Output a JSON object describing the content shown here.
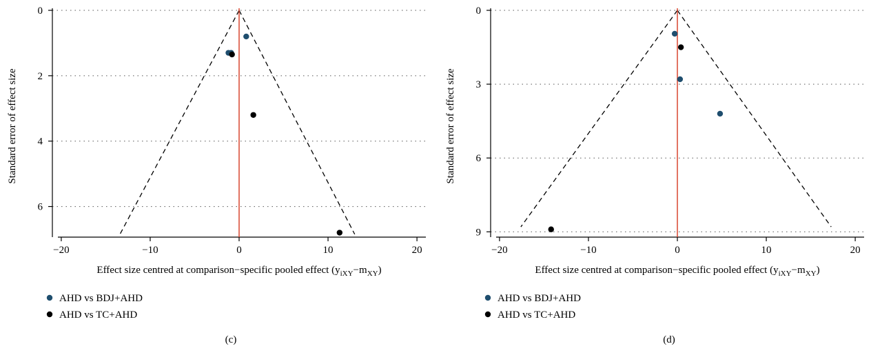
{
  "chart_data": [
    {
      "type": "scatter",
      "panel_label": "(c)",
      "xlabel": "Effect size centred at comparison−specific pooled effect (y",
      "xlabel_sub1": "iXY",
      "xlabel_mid": "−m",
      "xlabel_sub2": "XY",
      "xlabel_end": ")",
      "ylabel": "Standard error of effect size",
      "xlim": [
        -21,
        21
      ],
      "ylim": [
        0,
        7
      ],
      "y_reversed": true,
      "x_ticks": [
        "−20",
        "−10",
        "0",
        "10",
        "20"
      ],
      "x_tick_values": [
        -20,
        -10,
        0,
        10,
        20
      ],
      "y_ticks": [
        "0",
        "2",
        "4",
        "6"
      ],
      "y_tick_values": [
        0,
        2,
        4,
        6
      ],
      "grid": "horizontal dotted",
      "reference_line_x": 0,
      "funnel": {
        "apex_y": 0,
        "base_y": 6.85,
        "base_left_x": -13.4,
        "base_right_x": 13.0
      },
      "series": [
        {
          "name": "AHD vs BDJ+AHD",
          "color": "#1f4e6e",
          "points": [
            {
              "x": 0.8,
              "y": 0.8
            },
            {
              "x": -1.2,
              "y": 1.3
            },
            {
              "x": -0.9,
              "y": 1.3
            }
          ]
        },
        {
          "name": "AHD vs TC+AHD",
          "color": "#000000",
          "points": [
            {
              "x": -0.8,
              "y": 1.35
            },
            {
              "x": 1.6,
              "y": 3.2
            },
            {
              "x": 11.3,
              "y": 6.8
            }
          ]
        }
      ],
      "legend": "bottom-left"
    },
    {
      "type": "scatter",
      "panel_label": "(d)",
      "xlabel": "Effect size centred at comparison−specific pooled effect (y",
      "xlabel_sub1": "iXY",
      "xlabel_mid": "−m",
      "xlabel_sub2": "XY",
      "xlabel_end": ")",
      "ylabel": "Standard error of effect size",
      "xlim": [
        -21,
        21
      ],
      "ylim": [
        0,
        9.3
      ],
      "y_reversed": true,
      "x_ticks": [
        "−20",
        "−10",
        "0",
        "10",
        "20"
      ],
      "x_tick_values": [
        -20,
        -10,
        0,
        10,
        20
      ],
      "y_ticks": [
        "0",
        "3",
        "6",
        "9"
      ],
      "y_tick_values": [
        0,
        3,
        6,
        9
      ],
      "grid": "horizontal dotted",
      "reference_line_x": 0,
      "funnel": {
        "apex_y": 0,
        "base_y": 8.8,
        "base_left_x": -17.6,
        "base_right_x": 17.3
      },
      "series": [
        {
          "name": "AHD vs BDJ+AHD",
          "color": "#1f4e6e",
          "points": [
            {
              "x": -0.3,
              "y": 0.95
            },
            {
              "x": 0.3,
              "y": 2.8
            },
            {
              "x": 4.8,
              "y": 4.2
            }
          ]
        },
        {
          "name": "AHD vs TC+AHD",
          "color": "#000000",
          "points": [
            {
              "x": 0.4,
              "y": 1.5
            },
            {
              "x": -14.2,
              "y": 8.9
            }
          ]
        }
      ],
      "legend": "bottom-left"
    }
  ]
}
